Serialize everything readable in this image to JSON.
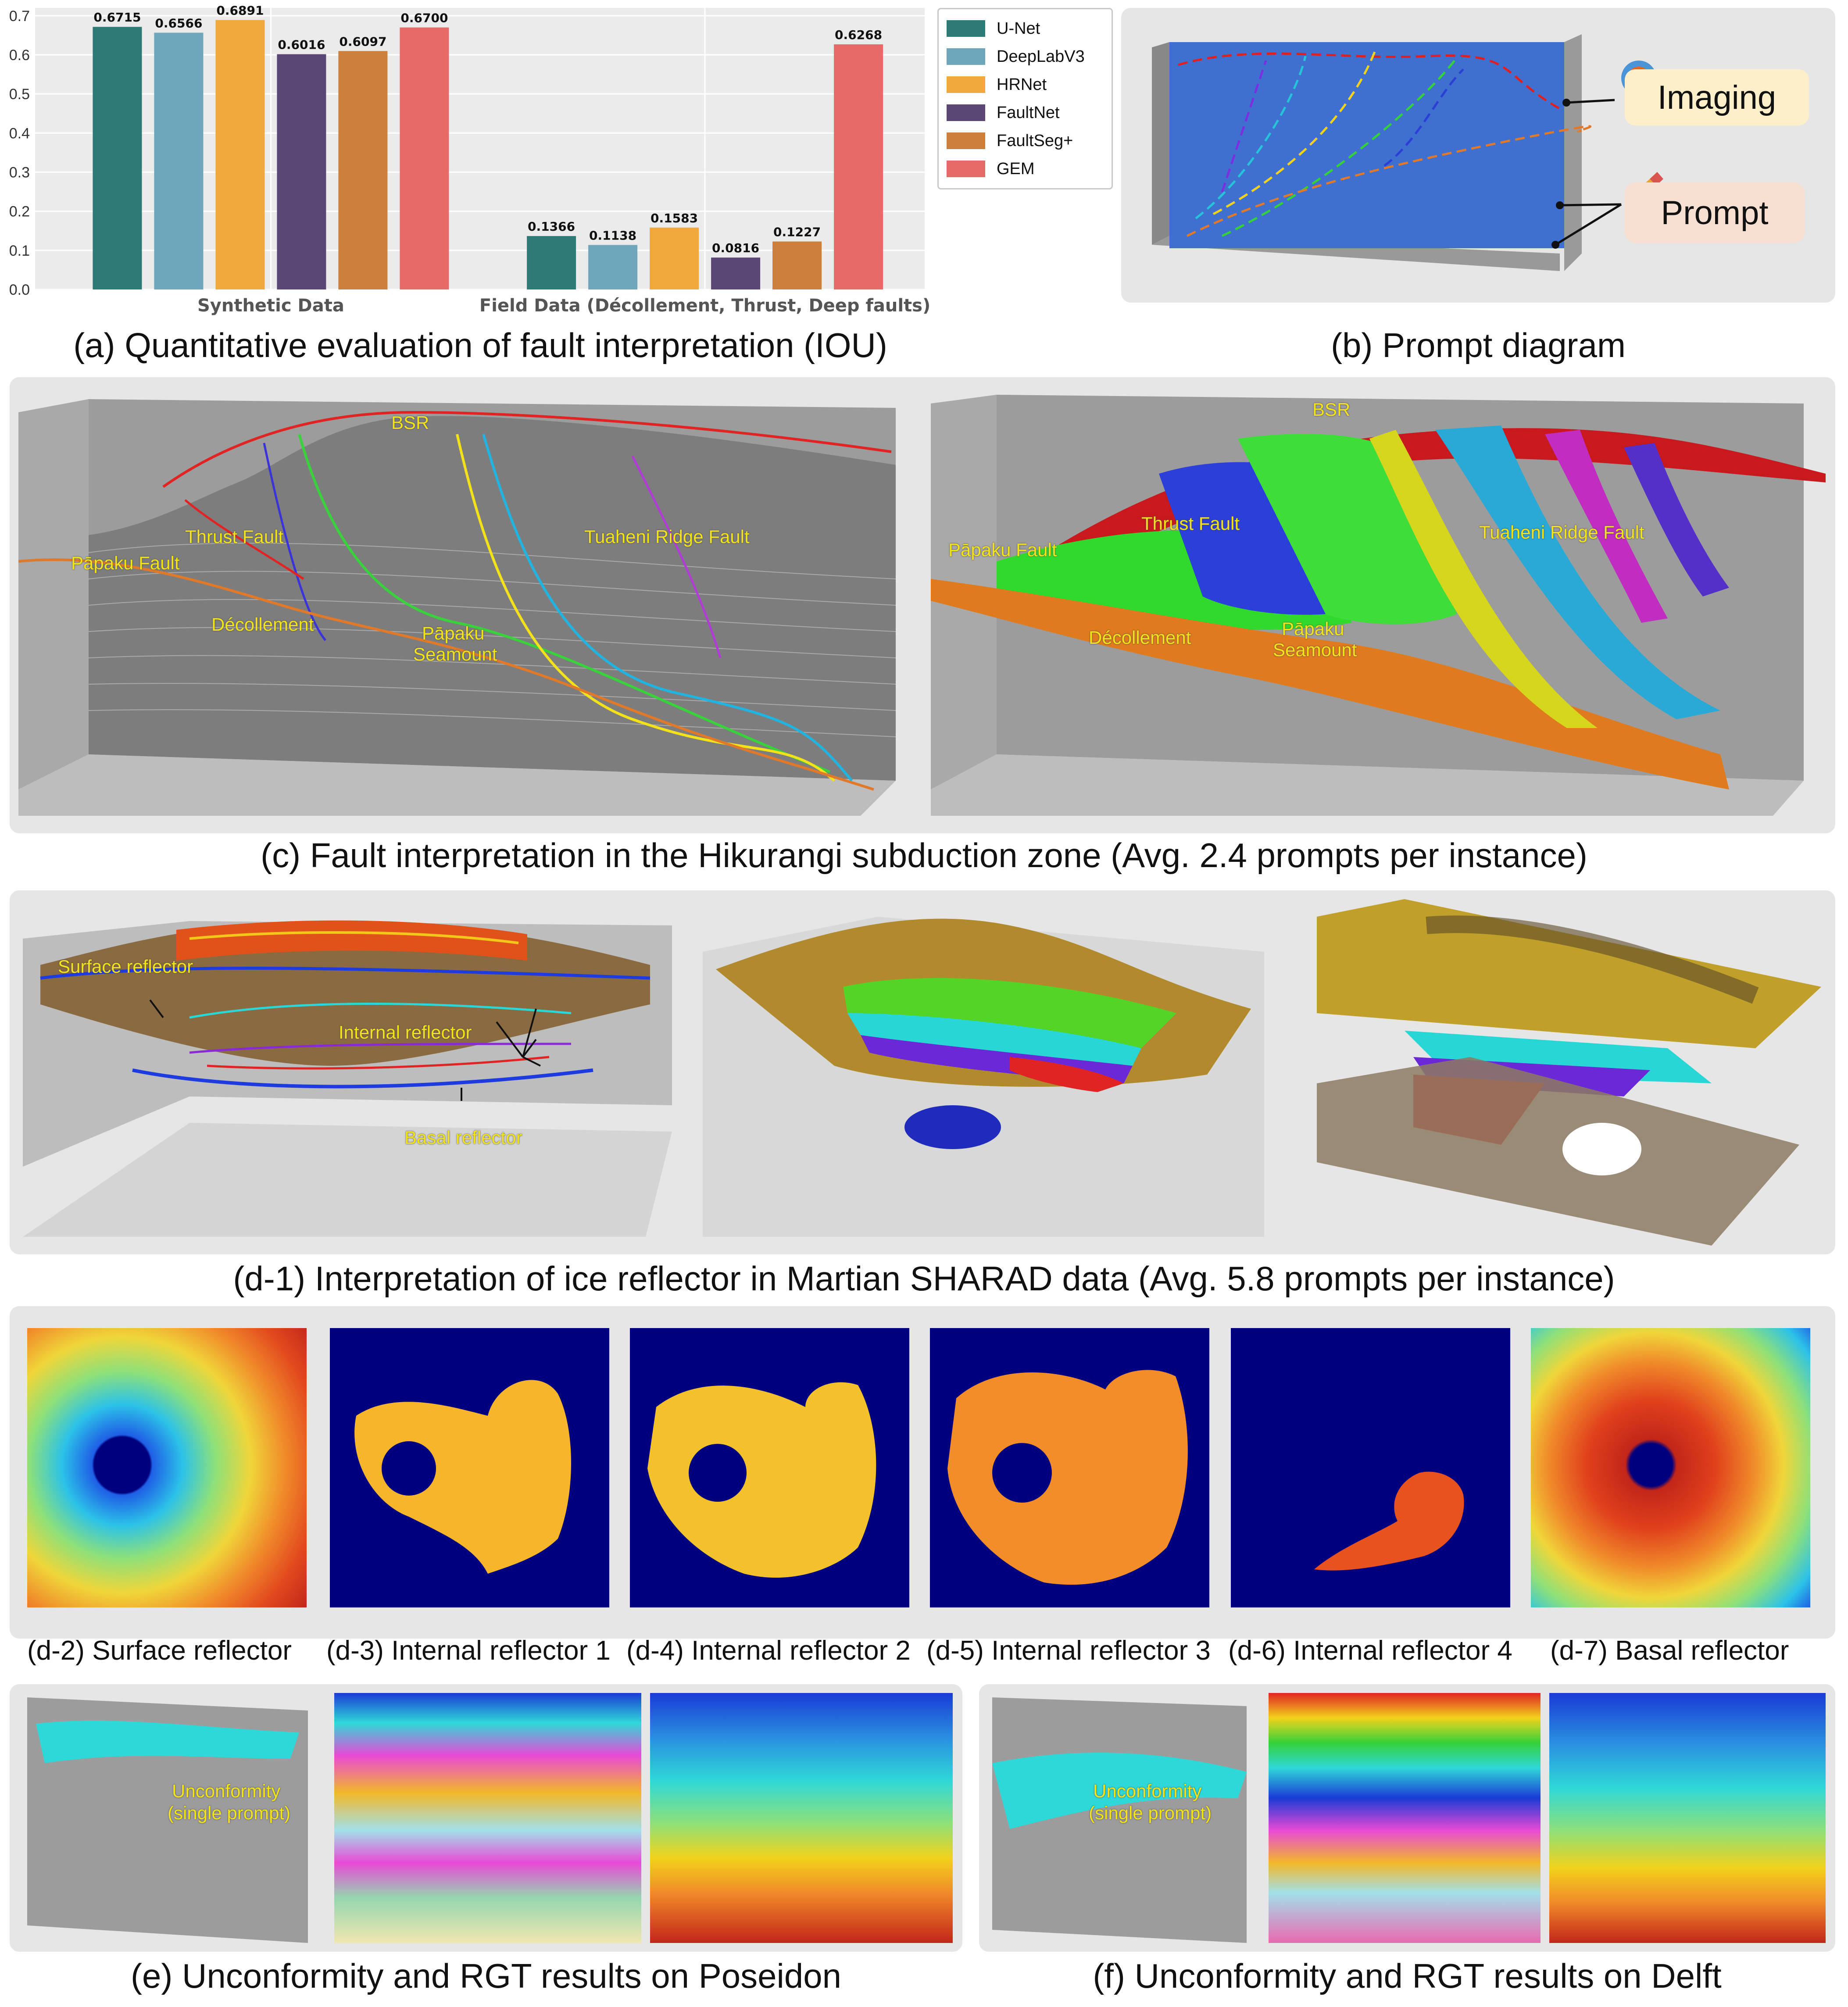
{
  "chart_data": {
    "type": "bar",
    "title": "",
    "xlabel": "",
    "ylabel": "",
    "ylim": [
      0,
      0.72
    ],
    "yticks": [
      "0.0",
      "0.1",
      "0.2",
      "0.3",
      "0.4",
      "0.5",
      "0.6",
      "0.7"
    ],
    "categories": [
      "Synthetic Data",
      "Field Data (Décollement, Thrust, Deep faults)"
    ],
    "series": [
      {
        "name": "U-Net",
        "color": "#2e7a77",
        "values": [
          0.6715,
          0.1366
        ],
        "labels": [
          "0.6715",
          "0.1366"
        ]
      },
      {
        "name": "DeepLabV3",
        "color": "#6ea7bc",
        "values": [
          0.6566,
          0.1138
        ],
        "labels": [
          "0.6566",
          "0.1138"
        ]
      },
      {
        "name": "HRNet",
        "color": "#f1a93d",
        "values": [
          0.6891,
          0.1583
        ],
        "labels": [
          "0.6891",
          "0.1583"
        ]
      },
      {
        "name": "FaultNet",
        "color": "#5a4776",
        "values": [
          0.6016,
          0.0816
        ],
        "labels": [
          "0.6016",
          "0.0816"
        ]
      },
      {
        "name": "FaultSeg+",
        "color": "#cd7f3e",
        "values": [
          0.6097,
          0.1227
        ],
        "labels": [
          "0.6097",
          "0.1227"
        ]
      },
      {
        "name": "GEM",
        "color": "#e66a67",
        "values": [
          0.67,
          0.6268
        ],
        "labels": [
          "0.6700",
          "0.6268"
        ]
      }
    ],
    "legend_position": "right"
  },
  "captions": {
    "a": "(a) Quantitative evaluation of fault interpretation (IOU)",
    "b": "(b) Prompt diagram",
    "c": "(c) Fault interpretation in the Hikurangi subduction zone (Avg. 2.4 prompts per instance)",
    "d1": "(d-1) Interpretation of ice reflector in Martian SHARAD data (Avg. 5.8 prompts per instance)",
    "d2": "(d-2) Surface reflector",
    "d3": "(d-3) Internal reflector 1",
    "d4": "(d-4) Internal reflector 2",
    "d5": "(d-5) Internal reflector 3",
    "d6": "(d-6) Internal reflector 4",
    "d7": "(d-7) Basal reflector",
    "e": "(e) Unconformity and RGT results on Poseidon",
    "f": "(f) Unconformity and RGT results on Delft"
  },
  "prompt_diagram": {
    "imaging": "Imaging",
    "prompt": "Prompt"
  },
  "hikurangi_labels": {
    "bsr": "BSR",
    "thrust": "Thrust Fault",
    "papaku_fault": "Pāpaku Fault",
    "tuaheni": "Tuaheni Ridge Fault",
    "decollement": "Décollement",
    "seamount_1": "Pāpaku",
    "seamount_2": "Seamount"
  },
  "sharad_labels": {
    "surface": "Surface reflector",
    "internal": "Internal reflector",
    "basal": "Basal reflector"
  },
  "unconformity_labels": {
    "line1": "Unconformity",
    "line2": "(single prompt)"
  }
}
